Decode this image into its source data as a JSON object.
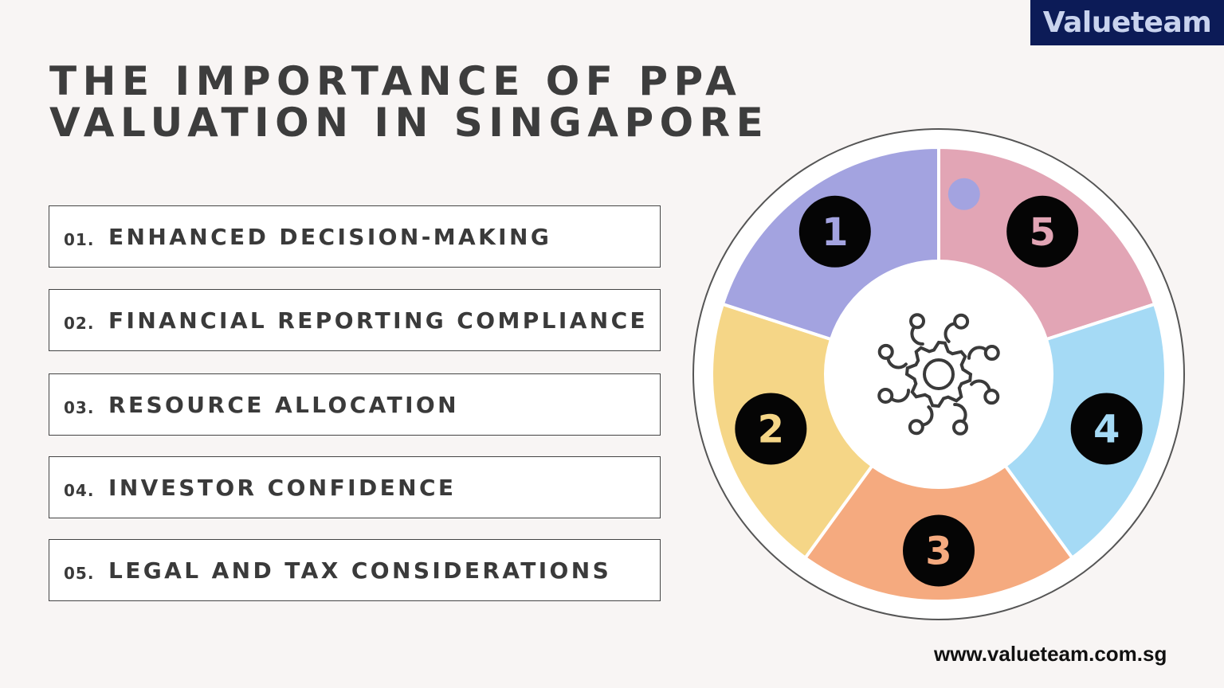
{
  "brand": {
    "logo_text": "Valueteam",
    "logo_bg": "#0c1b57"
  },
  "title": {
    "line1": "THE IMPORTANCE OF PPA",
    "line2": "VALUATION IN SINGAPORE"
  },
  "items": [
    {
      "num": "01.",
      "label": "ENHANCED DECISION-MAKING"
    },
    {
      "num": "02.",
      "label": "FINANCIAL REPORTING COMPLIANCE"
    },
    {
      "num": "03.",
      "label": "RESOURCE ALLOCATION"
    },
    {
      "num": "04.",
      "label": "INVESTOR CONFIDENCE"
    },
    {
      "num": "05.",
      "label": "LEGAL AND TAX CONSIDERATIONS"
    }
  ],
  "wheel": {
    "center_icon": "team-gear-icon",
    "pieces": [
      {
        "number": "1",
        "color": "#a3a3e0"
      },
      {
        "number": "2",
        "color": "#f5d687"
      },
      {
        "number": "3",
        "color": "#f5aa7f"
      },
      {
        "number": "4",
        "color": "#a5daf5"
      },
      {
        "number": "5",
        "color": "#e2a5b5"
      }
    ]
  },
  "footer": {
    "url": "www.valueteam.com.sg"
  }
}
